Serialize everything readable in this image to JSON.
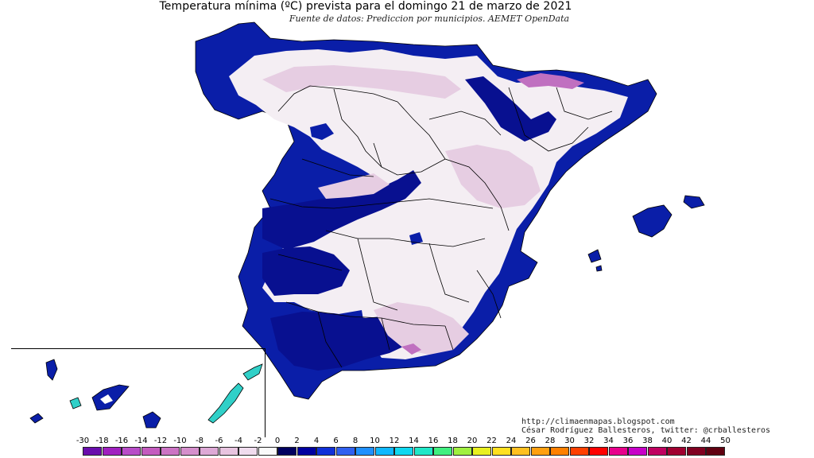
{
  "title": "Temperatura mínima (ºC) prevista para el domingo 21 de marzo de 2021",
  "subtitle": "Fuente de datos: Prediccion por municipios. AEMET OpenData",
  "credits": {
    "url": "http://climaenmapas.blogspot.com",
    "author": "César Rodríguez Ballesteros, twitter: @crballesteros"
  },
  "legend": {
    "ticks": [
      "-30",
      "-18",
      "-16",
      "-14",
      "-12",
      "-10",
      "-8",
      "-6",
      "-4",
      "-2",
      "0",
      "2",
      "4",
      "6",
      "8",
      "10",
      "12",
      "14",
      "16",
      "18",
      "20",
      "22",
      "24",
      "26",
      "28",
      "30",
      "32",
      "34",
      "36",
      "38",
      "40",
      "42",
      "44",
      "50"
    ],
    "colors": [
      "#6a0dad",
      "#a020c0",
      "#b84cc8",
      "#c45bbf",
      "#cc73c4",
      "#d58fcc",
      "#dea9d6",
      "#e8c4e0",
      "#f0dcee",
      "#fafafa",
      "#000060",
      "#0000a0",
      "#1030d8",
      "#3060f0",
      "#2090ff",
      "#10b8ff",
      "#10d8f0",
      "#20e8c8",
      "#40f080",
      "#a0f040",
      "#e8f020",
      "#ffe020",
      "#ffc020",
      "#ffa010",
      "#ff8000",
      "#ff4000",
      "#ff0000",
      "#e8008c",
      "#c800c8",
      "#c00060",
      "#a00030",
      "#800020",
      "#600010"
    ]
  },
  "map": {
    "colors": {
      "cold_pink": "#e6cde2",
      "light": "#f4eef3",
      "white": "#ffffff",
      "mid_blue": "#0a1ea8",
      "deep_blue": "#081090",
      "cyan": "#30d0c8",
      "magenta": "#c070c0",
      "border": "#000000"
    }
  }
}
